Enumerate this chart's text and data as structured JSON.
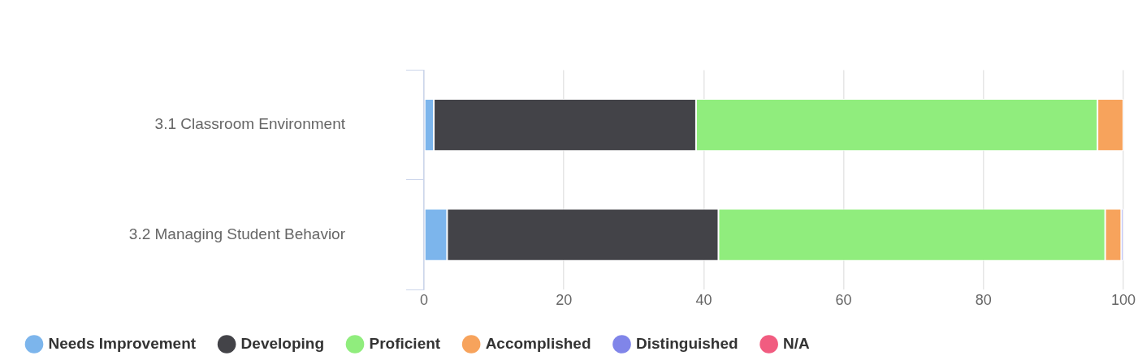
{
  "chart_data": {
    "type": "bar",
    "orientation": "horizontal",
    "stacked": true,
    "categories": [
      "3.1 Classroom Environment",
      "3.2 Managing Student Behavior"
    ],
    "series": [
      {
        "name": "Needs Improvement",
        "color": "#7cb5ec",
        "values": [
          1.4,
          3.3
        ]
      },
      {
        "name": "Developing",
        "color": "#434348",
        "values": [
          37.5,
          38.8
        ]
      },
      {
        "name": "Proficient",
        "color": "#90ed7d",
        "values": [
          57.4,
          55.3
        ]
      },
      {
        "name": "Accomplished",
        "color": "#f7a35c",
        "values": [
          3.7,
          2.3
        ]
      },
      {
        "name": "Distinguished",
        "color": "#8085e9",
        "values": [
          0,
          0.3
        ]
      },
      {
        "name": "N/A",
        "color": "#f15c80",
        "values": [
          0,
          0
        ]
      }
    ],
    "xlim": [
      0,
      100
    ],
    "xticks": [
      0,
      20,
      40,
      60,
      80,
      100
    ],
    "grid": "x",
    "legend": "bottom"
  }
}
